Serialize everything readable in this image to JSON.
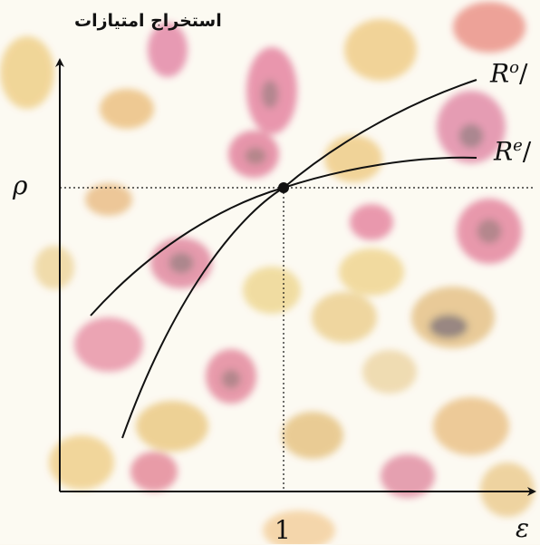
{
  "header": {
    "title": "استخراج امتیازات"
  },
  "axes": {
    "x_label": "ε",
    "y_label": "ρ",
    "x_tick": "1"
  },
  "curves": [
    {
      "name": "R",
      "superscript": "o",
      "suffix": "/"
    },
    {
      "name": "R",
      "superscript": "e",
      "suffix": "/"
    }
  ],
  "background": {
    "description": "blurred pink, red and yellow cells"
  }
}
